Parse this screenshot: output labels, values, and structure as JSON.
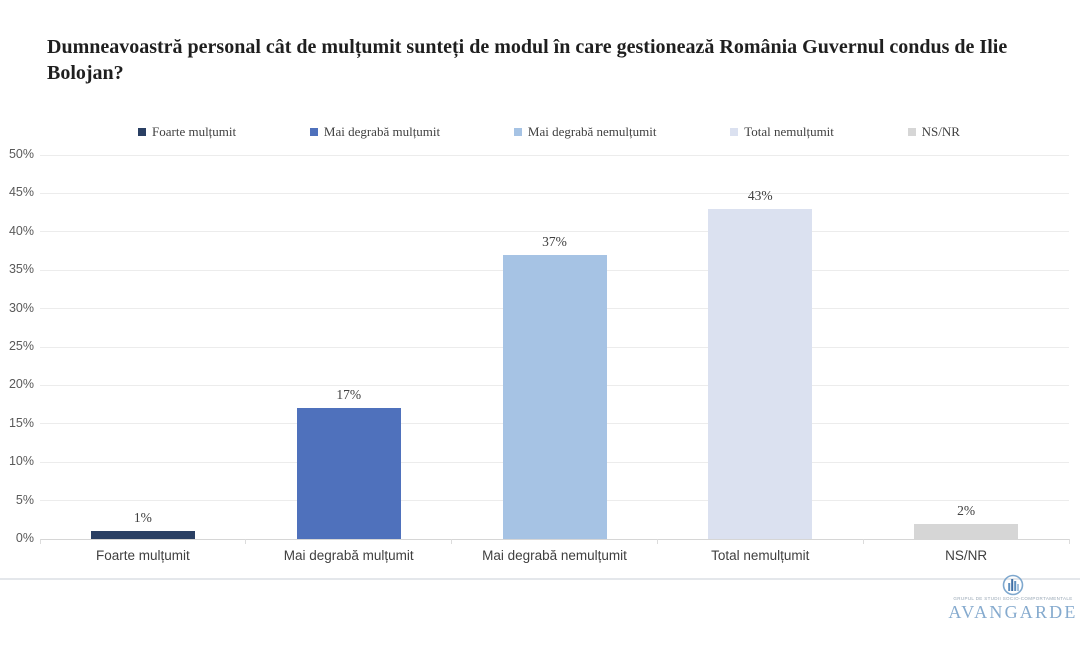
{
  "chart_data": {
    "type": "bar",
    "title": "Dumneavoastră personal cât de mulțumit sunteți de modul în care gestionează România Guvernul condus de Ilie Bolojan?",
    "categories": [
      "Foarte mulțumit",
      "Mai degrabă mulțumit",
      "Mai degrabă nemulțumit",
      "Total nemulțumit",
      "NS/NR"
    ],
    "values": [
      1,
      17,
      37,
      43,
      2
    ],
    "value_labels": [
      "1%",
      "17%",
      "37%",
      "43%",
      "2%"
    ],
    "bar_colors": [
      "#2A3F63",
      "#4F71BC",
      "#A6C3E4",
      "#DBE1F0",
      "#D6D6D6"
    ],
    "legend": [
      "Foarte mulțumit",
      "Mai degrabă mulțumit",
      "Mai degrabă nemulțumit",
      "Total nemulțumit",
      "NS/NR"
    ],
    "legend_position": "top",
    "xlabel": "",
    "ylabel": "",
    "ylim": [
      0,
      50
    ],
    "ytick_step": 5,
    "ytick_labels": [
      "0%",
      "5%",
      "10%",
      "15%",
      "20%",
      "25%",
      "30%",
      "35%",
      "40%",
      "45%",
      "50%"
    ],
    "grid": true
  },
  "logo": {
    "name": "AVANGARDE",
    "tagline": "GRUPUL DE STUDII SOCIO-COMPORTAMENTALE",
    "brand_color": "#85AACE"
  },
  "colors": {
    "grid": "#ECECEC",
    "axis": "#D6D6D6",
    "axis_label": "#595959",
    "data_label": "#404040",
    "title": "#1F1F1F"
  }
}
